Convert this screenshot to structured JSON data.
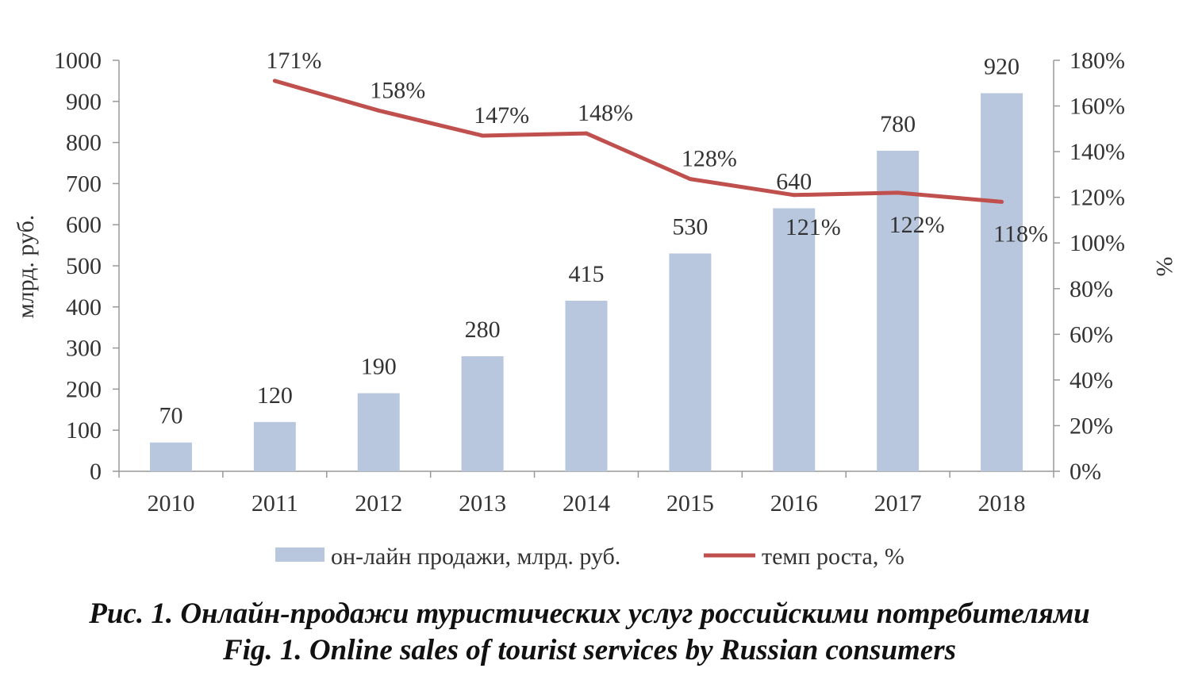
{
  "chart_data": {
    "type": "bar",
    "categories": [
      "2010",
      "2011",
      "2012",
      "2013",
      "2014",
      "2015",
      "2016",
      "2017",
      "2018"
    ],
    "series": [
      {
        "name": "он-лайн продажи, млрд. руб.",
        "type": "bar",
        "axis": "left",
        "color": "#b8c7de",
        "values": [
          70,
          120,
          190,
          280,
          415,
          530,
          640,
          780,
          920
        ],
        "labels": [
          "70",
          "120",
          "190",
          "280",
          "415",
          "530",
          "640",
          "780",
          "920"
        ]
      },
      {
        "name": "темп роста, %",
        "type": "line",
        "axis": "right",
        "color": "#c0504d",
        "values": [
          null,
          171,
          158,
          147,
          148,
          128,
          121,
          122,
          118
        ],
        "labels": [
          "",
          "171%",
          "158%",
          "147%",
          "148%",
          "128%",
          "121%",
          "122%",
          "118%"
        ]
      }
    ],
    "ylabel": "млрд. руб.",
    "ylim": [
      0,
      1000
    ],
    "yticks": [
      0,
      100,
      200,
      300,
      400,
      500,
      600,
      700,
      800,
      900,
      1000
    ],
    "yticklabels": [
      "0",
      "100",
      "200",
      "300",
      "400",
      "500",
      "600",
      "700",
      "800",
      "900",
      "1000"
    ],
    "y2label": "%",
    "y2lim": [
      0,
      180
    ],
    "y2ticks": [
      0,
      20,
      40,
      60,
      80,
      100,
      120,
      140,
      160,
      180
    ],
    "y2ticklabels": [
      "0%",
      "20%",
      "40%",
      "60%",
      "80%",
      "100%",
      "120%",
      "140%",
      "160%",
      "180%"
    ],
    "grid": false,
    "legend": "bottom"
  },
  "caption": {
    "ru": "Рис. 1. Онлайн-продажи туристических услуг российскими потребителями",
    "en": "Fig. 1. Online sales of tourist services by Russian consumers"
  }
}
